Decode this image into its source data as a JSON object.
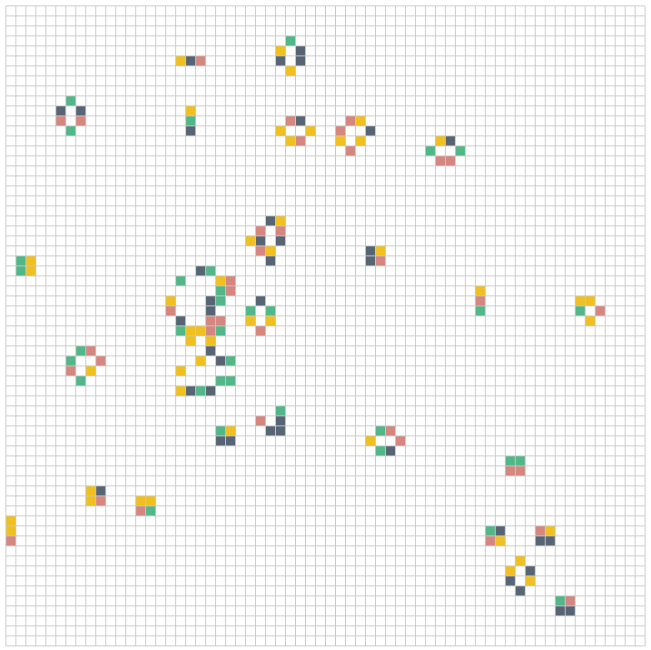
{
  "game": {
    "columns": 64,
    "rows": 64,
    "palette": {
      "green": "#52b788",
      "slate": "#566473",
      "pink": "#d4867f",
      "yellow": "#f0c020",
      "grid_line": "#c8c8c8",
      "background": "#ffffff"
    },
    "cells": [
      {
        "c": 28,
        "r": 3,
        "color": "green"
      },
      {
        "c": 27,
        "r": 4,
        "color": "yellow"
      },
      {
        "c": 29,
        "r": 4,
        "color": "slate"
      },
      {
        "c": 17,
        "r": 5,
        "color": "yellow"
      },
      {
        "c": 18,
        "r": 5,
        "color": "slate"
      },
      {
        "c": 19,
        "r": 5,
        "color": "pink"
      },
      {
        "c": 27,
        "r": 5,
        "color": "slate"
      },
      {
        "c": 29,
        "r": 5,
        "color": "slate"
      },
      {
        "c": 28,
        "r": 6,
        "color": "yellow"
      },
      {
        "c": 6,
        "r": 9,
        "color": "green"
      },
      {
        "c": 5,
        "r": 10,
        "color": "slate"
      },
      {
        "c": 7,
        "r": 10,
        "color": "slate"
      },
      {
        "c": 18,
        "r": 10,
        "color": "yellow"
      },
      {
        "c": 5,
        "r": 11,
        "color": "pink"
      },
      {
        "c": 7,
        "r": 11,
        "color": "pink"
      },
      {
        "c": 18,
        "r": 11,
        "color": "green"
      },
      {
        "c": 28,
        "r": 11,
        "color": "pink"
      },
      {
        "c": 29,
        "r": 11,
        "color": "slate"
      },
      {
        "c": 34,
        "r": 11,
        "color": "pink"
      },
      {
        "c": 35,
        "r": 11,
        "color": "yellow"
      },
      {
        "c": 6,
        "r": 12,
        "color": "green"
      },
      {
        "c": 18,
        "r": 12,
        "color": "slate"
      },
      {
        "c": 27,
        "r": 12,
        "color": "yellow"
      },
      {
        "c": 30,
        "r": 12,
        "color": "yellow"
      },
      {
        "c": 33,
        "r": 12,
        "color": "pink"
      },
      {
        "c": 36,
        "r": 12,
        "color": "slate"
      },
      {
        "c": 28,
        "r": 13,
        "color": "yellow"
      },
      {
        "c": 29,
        "r": 13,
        "color": "pink"
      },
      {
        "c": 33,
        "r": 13,
        "color": "yellow"
      },
      {
        "c": 35,
        "r": 13,
        "color": "yellow"
      },
      {
        "c": 43,
        "r": 13,
        "color": "yellow"
      },
      {
        "c": 44,
        "r": 13,
        "color": "slate"
      },
      {
        "c": 34,
        "r": 14,
        "color": "pink"
      },
      {
        "c": 42,
        "r": 14,
        "color": "green"
      },
      {
        "c": 45,
        "r": 14,
        "color": "green"
      },
      {
        "c": 43,
        "r": 15,
        "color": "pink"
      },
      {
        "c": 44,
        "r": 15,
        "color": "pink"
      },
      {
        "c": 26,
        "r": 21,
        "color": "slate"
      },
      {
        "c": 27,
        "r": 21,
        "color": "yellow"
      },
      {
        "c": 25,
        "r": 22,
        "color": "pink"
      },
      {
        "c": 27,
        "r": 22,
        "color": "pink"
      },
      {
        "c": 24,
        "r": 23,
        "color": "yellow"
      },
      {
        "c": 25,
        "r": 23,
        "color": "slate"
      },
      {
        "c": 27,
        "r": 23,
        "color": "slate"
      },
      {
        "c": 25,
        "r": 24,
        "color": "pink"
      },
      {
        "c": 26,
        "r": 24,
        "color": "yellow"
      },
      {
        "c": 36,
        "r": 24,
        "color": "slate"
      },
      {
        "c": 37,
        "r": 24,
        "color": "yellow"
      },
      {
        "c": 26,
        "r": 25,
        "color": "slate"
      },
      {
        "c": 36,
        "r": 25,
        "color": "slate"
      },
      {
        "c": 37,
        "r": 25,
        "color": "pink"
      },
      {
        "c": 1,
        "r": 25,
        "color": "green"
      },
      {
        "c": 2,
        "r": 25,
        "color": "yellow"
      },
      {
        "c": 1,
        "r": 26,
        "color": "green"
      },
      {
        "c": 2,
        "r": 26,
        "color": "yellow"
      },
      {
        "c": 19,
        "r": 26,
        "color": "slate"
      },
      {
        "c": 20,
        "r": 26,
        "color": "green"
      },
      {
        "c": 17,
        "r": 27,
        "color": "green"
      },
      {
        "c": 21,
        "r": 27,
        "color": "yellow"
      },
      {
        "c": 22,
        "r": 27,
        "color": "pink"
      },
      {
        "c": 21,
        "r": 28,
        "color": "green"
      },
      {
        "c": 22,
        "r": 28,
        "color": "pink"
      },
      {
        "c": 47,
        "r": 28,
        "color": "yellow"
      },
      {
        "c": 16,
        "r": 29,
        "color": "yellow"
      },
      {
        "c": 20,
        "r": 29,
        "color": "slate"
      },
      {
        "c": 21,
        "r": 29,
        "color": "green"
      },
      {
        "c": 25,
        "r": 29,
        "color": "slate"
      },
      {
        "c": 47,
        "r": 29,
        "color": "pink"
      },
      {
        "c": 57,
        "r": 29,
        "color": "yellow"
      },
      {
        "c": 58,
        "r": 29,
        "color": "yellow"
      },
      {
        "c": 16,
        "r": 30,
        "color": "pink"
      },
      {
        "c": 20,
        "r": 30,
        "color": "slate"
      },
      {
        "c": 24,
        "r": 30,
        "color": "green"
      },
      {
        "c": 26,
        "r": 30,
        "color": "green"
      },
      {
        "c": 47,
        "r": 30,
        "color": "green"
      },
      {
        "c": 57,
        "r": 30,
        "color": "green"
      },
      {
        "c": 59,
        "r": 30,
        "color": "pink"
      },
      {
        "c": 17,
        "r": 31,
        "color": "slate"
      },
      {
        "c": 20,
        "r": 31,
        "color": "pink"
      },
      {
        "c": 21,
        "r": 31,
        "color": "pink"
      },
      {
        "c": 24,
        "r": 31,
        "color": "yellow"
      },
      {
        "c": 26,
        "r": 31,
        "color": "yellow"
      },
      {
        "c": 58,
        "r": 31,
        "color": "yellow"
      },
      {
        "c": 17,
        "r": 32,
        "color": "green"
      },
      {
        "c": 18,
        "r": 32,
        "color": "yellow"
      },
      {
        "c": 19,
        "r": 32,
        "color": "yellow"
      },
      {
        "c": 20,
        "r": 32,
        "color": "pink"
      },
      {
        "c": 21,
        "r": 32,
        "color": "green"
      },
      {
        "c": 25,
        "r": 32,
        "color": "pink"
      },
      {
        "c": 18,
        "r": 33,
        "color": "yellow"
      },
      {
        "c": 20,
        "r": 33,
        "color": "yellow"
      },
      {
        "c": 7,
        "r": 34,
        "color": "green"
      },
      {
        "c": 8,
        "r": 34,
        "color": "pink"
      },
      {
        "c": 20,
        "r": 34,
        "color": "slate"
      },
      {
        "c": 6,
        "r": 35,
        "color": "green"
      },
      {
        "c": 9,
        "r": 35,
        "color": "pink"
      },
      {
        "c": 19,
        "r": 35,
        "color": "yellow"
      },
      {
        "c": 21,
        "r": 35,
        "color": "slate"
      },
      {
        "c": 22,
        "r": 35,
        "color": "green"
      },
      {
        "c": 6,
        "r": 36,
        "color": "pink"
      },
      {
        "c": 8,
        "r": 36,
        "color": "yellow"
      },
      {
        "c": 17,
        "r": 36,
        "color": "yellow"
      },
      {
        "c": 7,
        "r": 37,
        "color": "green"
      },
      {
        "c": 21,
        "r": 37,
        "color": "green"
      },
      {
        "c": 22,
        "r": 37,
        "color": "green"
      },
      {
        "c": 17,
        "r": 38,
        "color": "yellow"
      },
      {
        "c": 18,
        "r": 38,
        "color": "slate"
      },
      {
        "c": 19,
        "r": 38,
        "color": "green"
      },
      {
        "c": 20,
        "r": 38,
        "color": "slate"
      },
      {
        "c": 27,
        "r": 40,
        "color": "green"
      },
      {
        "c": 25,
        "r": 41,
        "color": "pink"
      },
      {
        "c": 27,
        "r": 41,
        "color": "slate"
      },
      {
        "c": 21,
        "r": 42,
        "color": "green"
      },
      {
        "c": 22,
        "r": 42,
        "color": "yellow"
      },
      {
        "c": 26,
        "r": 42,
        "color": "slate"
      },
      {
        "c": 27,
        "r": 42,
        "color": "slate"
      },
      {
        "c": 37,
        "r": 42,
        "color": "green"
      },
      {
        "c": 38,
        "r": 42,
        "color": "pink"
      },
      {
        "c": 21,
        "r": 43,
        "color": "slate"
      },
      {
        "c": 22,
        "r": 43,
        "color": "slate"
      },
      {
        "c": 36,
        "r": 43,
        "color": "yellow"
      },
      {
        "c": 39,
        "r": 43,
        "color": "pink"
      },
      {
        "c": 37,
        "r": 44,
        "color": "green"
      },
      {
        "c": 38,
        "r": 44,
        "color": "slate"
      },
      {
        "c": 50,
        "r": 45,
        "color": "green"
      },
      {
        "c": 51,
        "r": 45,
        "color": "green"
      },
      {
        "c": 50,
        "r": 46,
        "color": "pink"
      },
      {
        "c": 51,
        "r": 46,
        "color": "pink"
      },
      {
        "c": 8,
        "r": 48,
        "color": "yellow"
      },
      {
        "c": 9,
        "r": 48,
        "color": "slate"
      },
      {
        "c": 8,
        "r": 49,
        "color": "yellow"
      },
      {
        "c": 9,
        "r": 49,
        "color": "pink"
      },
      {
        "c": 13,
        "r": 49,
        "color": "yellow"
      },
      {
        "c": 14,
        "r": 49,
        "color": "yellow"
      },
      {
        "c": 13,
        "r": 50,
        "color": "pink"
      },
      {
        "c": 14,
        "r": 50,
        "color": "green"
      },
      {
        "c": 0,
        "r": 51,
        "color": "yellow"
      },
      {
        "c": 0,
        "r": 52,
        "color": "yellow"
      },
      {
        "c": 48,
        "r": 52,
        "color": "green"
      },
      {
        "c": 49,
        "r": 52,
        "color": "slate"
      },
      {
        "c": 53,
        "r": 52,
        "color": "pink"
      },
      {
        "c": 54,
        "r": 52,
        "color": "yellow"
      },
      {
        "c": 0,
        "r": 53,
        "color": "pink"
      },
      {
        "c": 48,
        "r": 53,
        "color": "pink"
      },
      {
        "c": 49,
        "r": 53,
        "color": "yellow"
      },
      {
        "c": 53,
        "r": 53,
        "color": "slate"
      },
      {
        "c": 54,
        "r": 53,
        "color": "slate"
      },
      {
        "c": 51,
        "r": 55,
        "color": "yellow"
      },
      {
        "c": 50,
        "r": 56,
        "color": "yellow"
      },
      {
        "c": 52,
        "r": 56,
        "color": "slate"
      },
      {
        "c": 50,
        "r": 57,
        "color": "slate"
      },
      {
        "c": 52,
        "r": 57,
        "color": "yellow"
      },
      {
        "c": 51,
        "r": 58,
        "color": "slate"
      },
      {
        "c": 55,
        "r": 59,
        "color": "green"
      },
      {
        "c": 56,
        "r": 59,
        "color": "pink"
      },
      {
        "c": 55,
        "r": 60,
        "color": "slate"
      },
      {
        "c": 56,
        "r": 60,
        "color": "slate"
      }
    ]
  }
}
